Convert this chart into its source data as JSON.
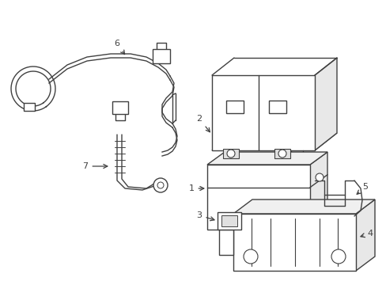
{
  "bg_color": "#ffffff",
  "line_color": "#404040",
  "line_width": 1.0,
  "fig_width": 4.89,
  "fig_height": 3.6,
  "dpi": 100
}
